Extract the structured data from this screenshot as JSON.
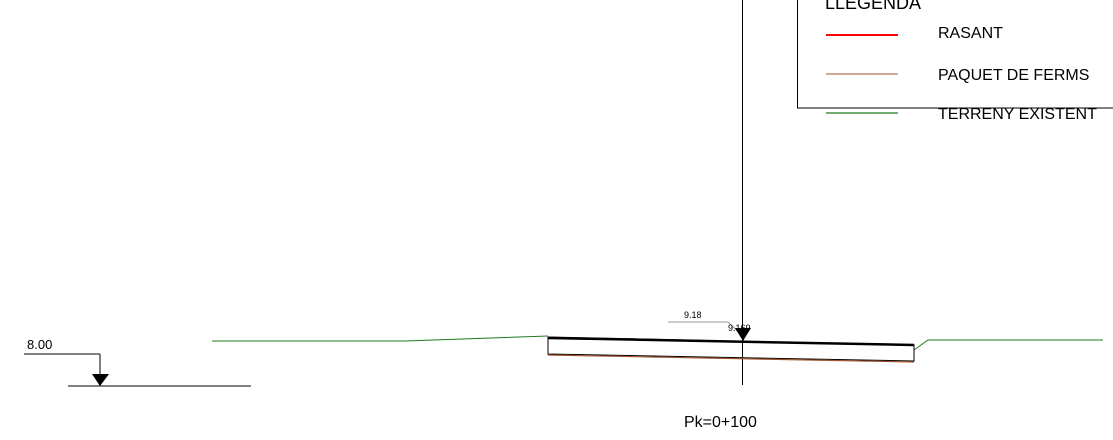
{
  "legend": {
    "title": "LLEGENDA",
    "items": [
      {
        "label": "RASANT",
        "color": "#ff0000"
      },
      {
        "label": "PAQUET DE FERMS",
        "color": "#a0522d"
      },
      {
        "label": "TERRENY EXISTENT",
        "color": "#1f7a1f"
      }
    ]
  },
  "reference": {
    "elevation_label": "8.00"
  },
  "axis": {
    "elevation_label": "9.18",
    "elevation_label_2": "9.169"
  },
  "section": {
    "pk_label": "Pk=0+100"
  },
  "colors": {
    "ground": "#1f7a1f",
    "pavement": "#a0522d",
    "rasant": "#ff0000",
    "lines": "#000000"
  }
}
